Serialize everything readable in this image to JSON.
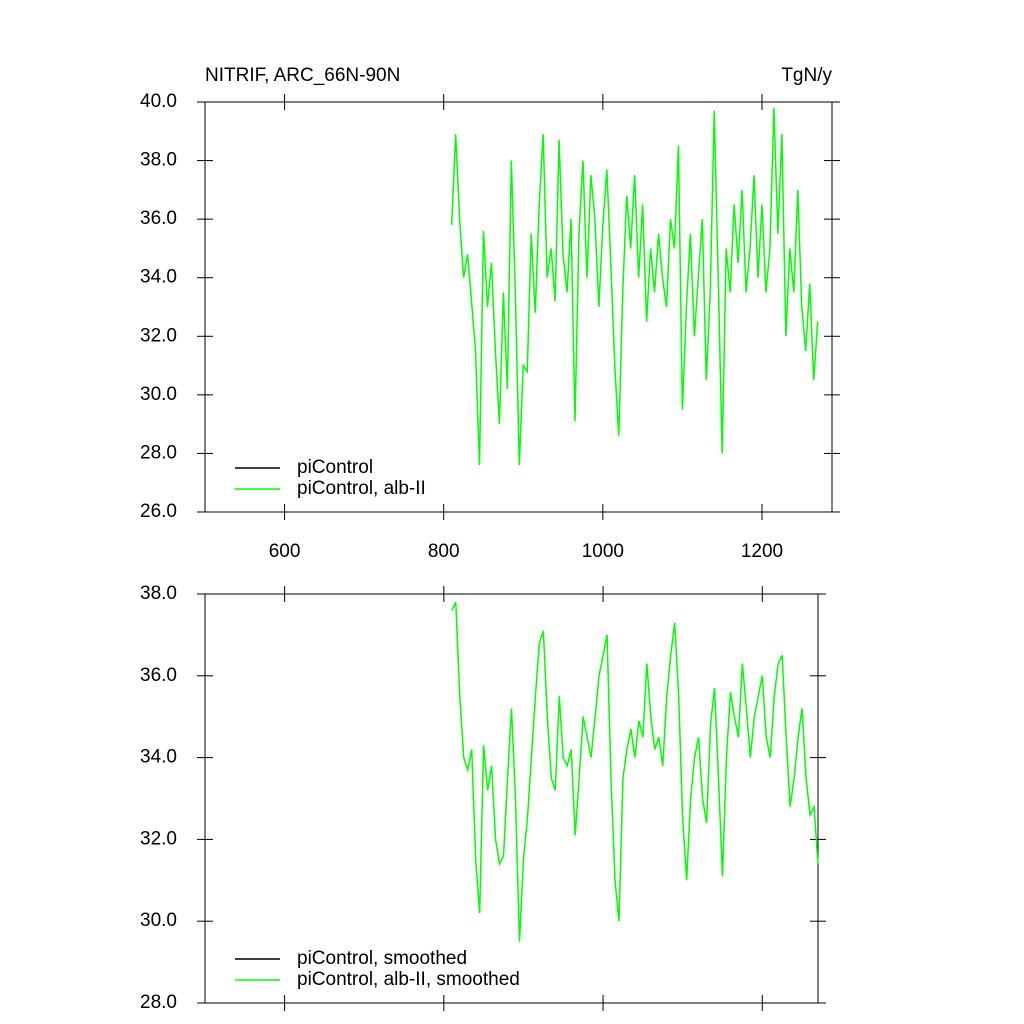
{
  "chart_data": [
    {
      "type": "line",
      "title": "NITRIF, ARC_66N-90N",
      "units": "TgN/y",
      "xlim": [
        500,
        1288
      ],
      "ylim": [
        26,
        40
      ],
      "xticks": [
        600,
        800,
        1000,
        1200
      ],
      "xtick_labels": true,
      "yticks": [
        {
          "value": 26,
          "label": "26.0"
        },
        {
          "value": 28,
          "label": "28.0"
        },
        {
          "value": 30,
          "label": "30.0"
        },
        {
          "value": 32,
          "label": "32.0"
        },
        {
          "value": 34,
          "label": "34.0"
        },
        {
          "value": 36,
          "label": "36.0"
        },
        {
          "value": 38,
          "label": "38.0"
        },
        {
          "value": 40,
          "label": "40.0"
        }
      ],
      "legend_position": "lower-left",
      "series": [
        {
          "name": "piControl",
          "color": "#000000",
          "x": [],
          "values": []
        },
        {
          "name": "piControl, alb-II",
          "color": "#00ff00",
          "x": [
            810,
            815,
            820,
            825,
            830,
            835,
            840,
            845,
            850,
            855,
            860,
            865,
            870,
            875,
            880,
            885,
            890,
            895,
            900,
            905,
            910,
            915,
            920,
            925,
            930,
            935,
            940,
            945,
            950,
            955,
            960,
            965,
            970,
            975,
            980,
            985,
            990,
            995,
            1000,
            1005,
            1010,
            1015,
            1020,
            1025,
            1030,
            1035,
            1040,
            1045,
            1050,
            1055,
            1060,
            1065,
            1070,
            1075,
            1080,
            1085,
            1090,
            1095,
            1100,
            1105,
            1110,
            1115,
            1120,
            1125,
            1130,
            1135,
            1140,
            1145,
            1150,
            1155,
            1160,
            1165,
            1170,
            1175,
            1180,
            1185,
            1190,
            1195,
            1200,
            1205,
            1210,
            1215,
            1220,
            1225,
            1230,
            1235,
            1240,
            1245,
            1250,
            1255,
            1260,
            1265,
            1270
          ],
          "values": [
            35.8,
            38.9,
            36.0,
            34.0,
            34.8,
            33.2,
            31.5,
            27.6,
            35.6,
            33.0,
            34.5,
            31.5,
            29.0,
            33.5,
            30.2,
            38.0,
            33.5,
            27.6,
            31.0,
            30.8,
            35.5,
            32.8,
            36.5,
            38.9,
            34.0,
            35.0,
            33.2,
            38.7,
            34.8,
            33.5,
            36.0,
            29.1,
            35.5,
            38.0,
            34.0,
            37.5,
            36.0,
            33.0,
            35.8,
            37.7,
            34.5,
            31.0,
            28.6,
            33.5,
            36.8,
            35.0,
            37.5,
            34.0,
            36.5,
            32.5,
            35.0,
            33.5,
            35.5,
            34.0,
            33.0,
            36.0,
            35.0,
            38.5,
            29.5,
            33.0,
            35.5,
            32.0,
            34.0,
            36.0,
            30.5,
            33.5,
            39.7,
            34.0,
            28.0,
            35.0,
            33.5,
            36.5,
            34.5,
            37.0,
            33.5,
            35.0,
            37.5,
            34.0,
            36.5,
            33.5,
            35.0,
            39.8,
            35.5,
            38.9,
            32.0,
            35.0,
            33.5,
            37.0,
            33.0,
            31.5,
            33.8,
            30.5,
            32.5
          ]
        }
      ]
    },
    {
      "type": "line",
      "xlim": [
        500,
        1270
      ],
      "ylim": [
        28,
        38
      ],
      "xticks": [
        600,
        800,
        1000,
        1200
      ],
      "xtick_labels": false,
      "yticks": [
        {
          "value": 28,
          "label": "28.0"
        },
        {
          "value": 30,
          "label": "30.0"
        },
        {
          "value": 32,
          "label": "32.0"
        },
        {
          "value": 34,
          "label": "34.0"
        },
        {
          "value": 36,
          "label": "36.0"
        },
        {
          "value": 38,
          "label": "38.0"
        }
      ],
      "legend_position": "lower-left",
      "series": [
        {
          "name": "piControl, smoothed",
          "color": "#000000",
          "x": [],
          "values": []
        },
        {
          "name": "piControl, alb-II, smoothed",
          "color": "#00ff00",
          "x": [
            810,
            815,
            820,
            825,
            830,
            835,
            840,
            845,
            850,
            855,
            860,
            865,
            870,
            875,
            880,
            885,
            890,
            895,
            900,
            905,
            910,
            915,
            920,
            925,
            930,
            935,
            940,
            945,
            950,
            955,
            960,
            965,
            970,
            975,
            980,
            985,
            990,
            995,
            1000,
            1005,
            1010,
            1015,
            1020,
            1025,
            1030,
            1035,
            1040,
            1045,
            1050,
            1055,
            1060,
            1065,
            1070,
            1075,
            1080,
            1085,
            1090,
            1095,
            1100,
            1105,
            1110,
            1115,
            1120,
            1125,
            1130,
            1135,
            1140,
            1145,
            1150,
            1155,
            1160,
            1165,
            1170,
            1175,
            1180,
            1185,
            1190,
            1195,
            1200,
            1205,
            1210,
            1215,
            1220,
            1225,
            1230,
            1235,
            1240,
            1245,
            1250,
            1255,
            1260,
            1265,
            1270
          ],
          "values": [
            37.6,
            37.8,
            35.5,
            34.0,
            33.7,
            34.2,
            31.5,
            30.2,
            34.3,
            33.2,
            33.8,
            32.0,
            31.4,
            31.6,
            33.5,
            35.2,
            33.0,
            29.5,
            31.5,
            32.5,
            34.0,
            35.5,
            36.8,
            37.1,
            35.0,
            33.5,
            33.2,
            35.5,
            34.0,
            33.8,
            34.2,
            32.1,
            33.5,
            35.0,
            34.5,
            34.0,
            35.0,
            36.0,
            36.5,
            37.0,
            33.5,
            31.0,
            30.0,
            33.5,
            34.2,
            34.7,
            34.0,
            34.9,
            34.5,
            36.3,
            35.0,
            34.2,
            34.5,
            33.8,
            35.5,
            36.5,
            37.3,
            35.5,
            32.5,
            31.0,
            33.0,
            34.0,
            34.5,
            33.0,
            32.4,
            34.8,
            35.7,
            33.5,
            31.1,
            34.0,
            35.6,
            35.0,
            34.5,
            36.3,
            35.2,
            34.0,
            35.0,
            35.5,
            36.0,
            34.5,
            34.0,
            35.5,
            36.3,
            36.5,
            34.5,
            32.8,
            33.5,
            34.5,
            35.2,
            33.5,
            32.6,
            32.8,
            31.4
          ]
        }
      ]
    }
  ]
}
